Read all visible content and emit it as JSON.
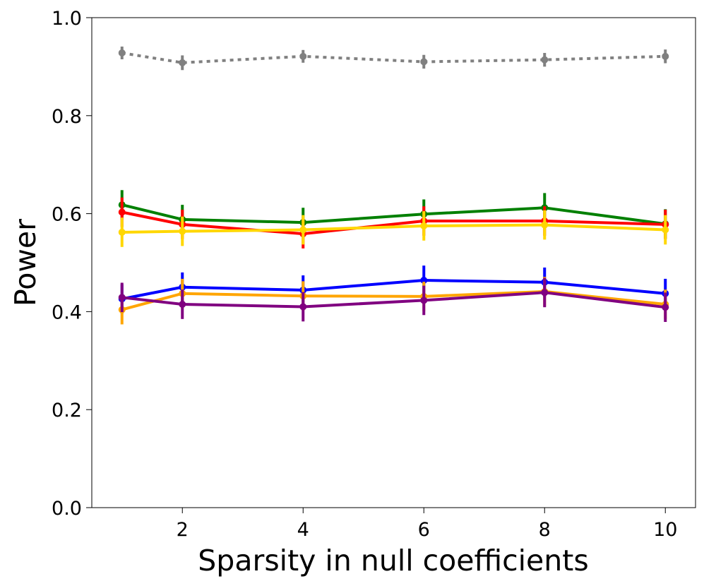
{
  "chart_data": {
    "type": "line",
    "title": "",
    "xlabel": "Sparsity in null coefficients",
    "ylabel": "Power",
    "xlim": [
      0.5,
      10.5
    ],
    "ylim": [
      0.0,
      1.0
    ],
    "xticks": [
      2,
      4,
      6,
      8,
      10
    ],
    "xtick_labels": [
      "2",
      "4",
      "6",
      "8",
      "10"
    ],
    "yticks": [
      0.0,
      0.2,
      0.4,
      0.6,
      0.8,
      1.0
    ],
    "ytick_labels": [
      "0.0",
      "0.2",
      "0.4",
      "0.6",
      "0.8",
      "1.0"
    ],
    "grid": false,
    "legend": "none",
    "x": [
      1,
      2,
      4,
      6,
      8,
      10
    ],
    "series": [
      {
        "name": "gray",
        "color": "#808080",
        "dashed": true,
        "values": [
          0.928,
          0.908,
          0.921,
          0.91,
          0.914,
          0.921
        ],
        "errors": [
          0.013,
          0.015,
          0.013,
          0.014,
          0.014,
          0.014
        ]
      },
      {
        "name": "green",
        "color": "#008000",
        "dashed": false,
        "values": [
          0.618,
          0.588,
          0.582,
          0.599,
          0.612,
          0.579
        ],
        "errors": [
          0.03,
          0.03,
          0.03,
          0.03,
          0.03,
          0.03
        ]
      },
      {
        "name": "red",
        "color": "#ff0000",
        "dashed": false,
        "values": [
          0.603,
          0.578,
          0.559,
          0.585,
          0.585,
          0.578
        ],
        "errors": [
          0.03,
          0.03,
          0.03,
          0.03,
          0.03,
          0.03
        ]
      },
      {
        "name": "gold",
        "color": "#ffd700",
        "dashed": false,
        "values": [
          0.562,
          0.564,
          0.567,
          0.575,
          0.577,
          0.567
        ],
        "errors": [
          0.03,
          0.03,
          0.03,
          0.03,
          0.03,
          0.03
        ]
      },
      {
        "name": "blue",
        "color": "#0000ff",
        "dashed": false,
        "values": [
          0.426,
          0.45,
          0.444,
          0.464,
          0.46,
          0.437
        ],
        "errors": [
          0.03,
          0.03,
          0.03,
          0.03,
          0.03,
          0.03
        ]
      },
      {
        "name": "orange",
        "color": "#ffa500",
        "dashed": false,
        "values": [
          0.404,
          0.437,
          0.432,
          0.431,
          0.441,
          0.415
        ],
        "errors": [
          0.03,
          0.03,
          0.03,
          0.03,
          0.03,
          0.03
        ]
      },
      {
        "name": "purple",
        "color": "#800080",
        "dashed": false,
        "values": [
          0.429,
          0.415,
          0.41,
          0.423,
          0.439,
          0.409
        ],
        "errors": [
          0.03,
          0.03,
          0.03,
          0.03,
          0.03,
          0.03
        ]
      }
    ]
  }
}
